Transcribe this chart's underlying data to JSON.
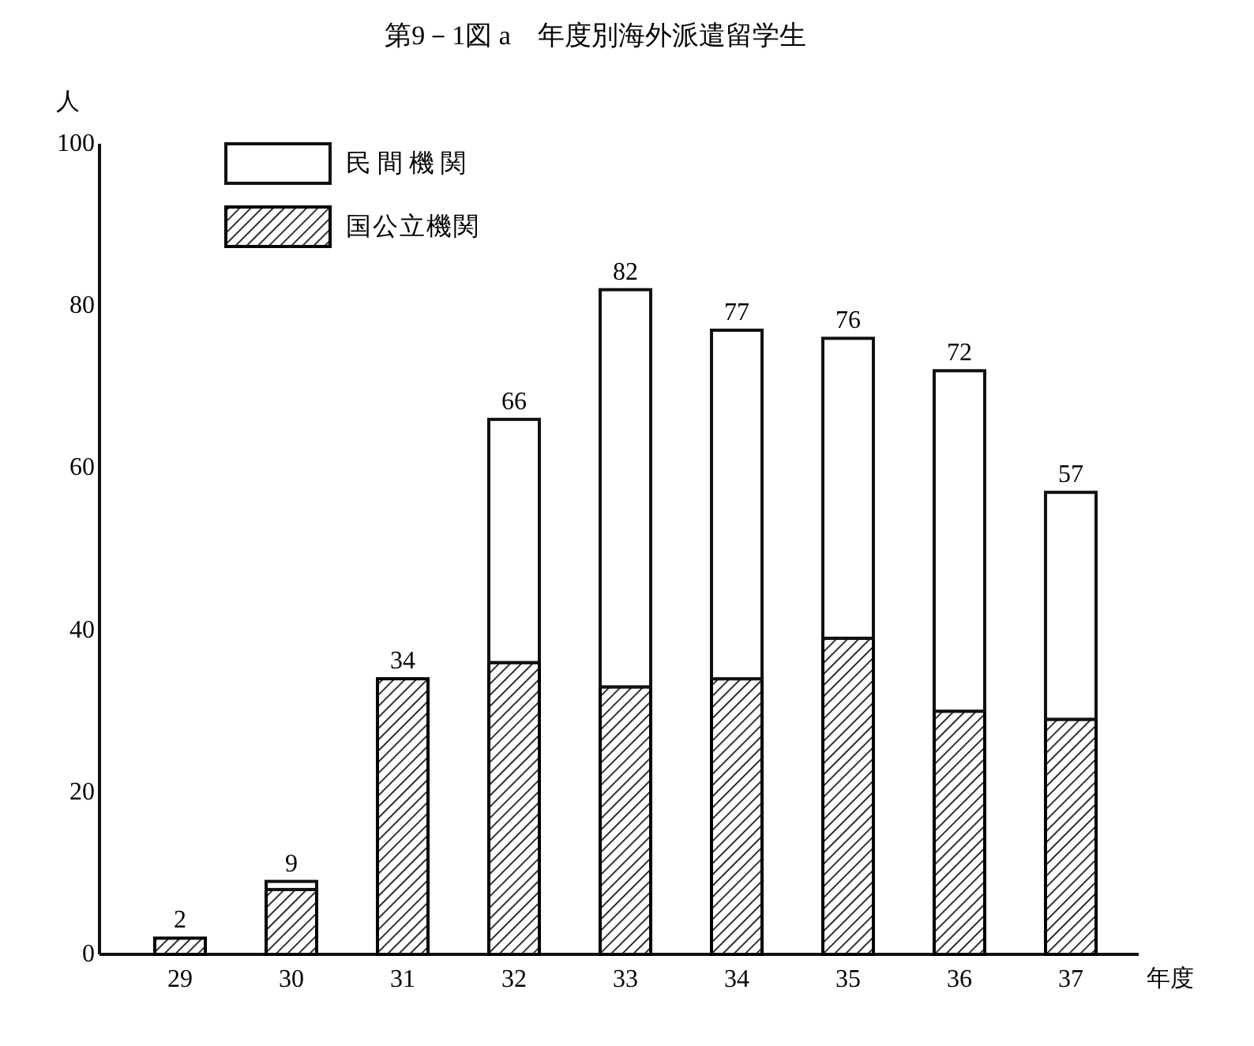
{
  "chart_data": {
    "type": "bar",
    "title": "第9－1図 a　年度別海外派遣留学生",
    "ylabel": "人",
    "xlabel": "年度",
    "categories": [
      "29",
      "30",
      "31",
      "32",
      "33",
      "34",
      "35",
      "36",
      "37"
    ],
    "series": [
      {
        "name": "国公立機関",
        "color": "#000000",
        "values": [
          2,
          8,
          34,
          36,
          33,
          34,
          39,
          30,
          29
        ]
      },
      {
        "name": "民間機関",
        "color": "#ffffff",
        "values": [
          0,
          1,
          0,
          30,
          49,
          43,
          37,
          42,
          28
        ]
      }
    ],
    "stacked": true,
    "ylim": [
      0,
      100
    ],
    "yticks": [
      0,
      20,
      40,
      60,
      80,
      100
    ],
    "totals": [
      "2",
      "9",
      "34",
      "66",
      "82",
      "77",
      "76",
      "72",
      "57"
    ],
    "legend": "top left"
  }
}
